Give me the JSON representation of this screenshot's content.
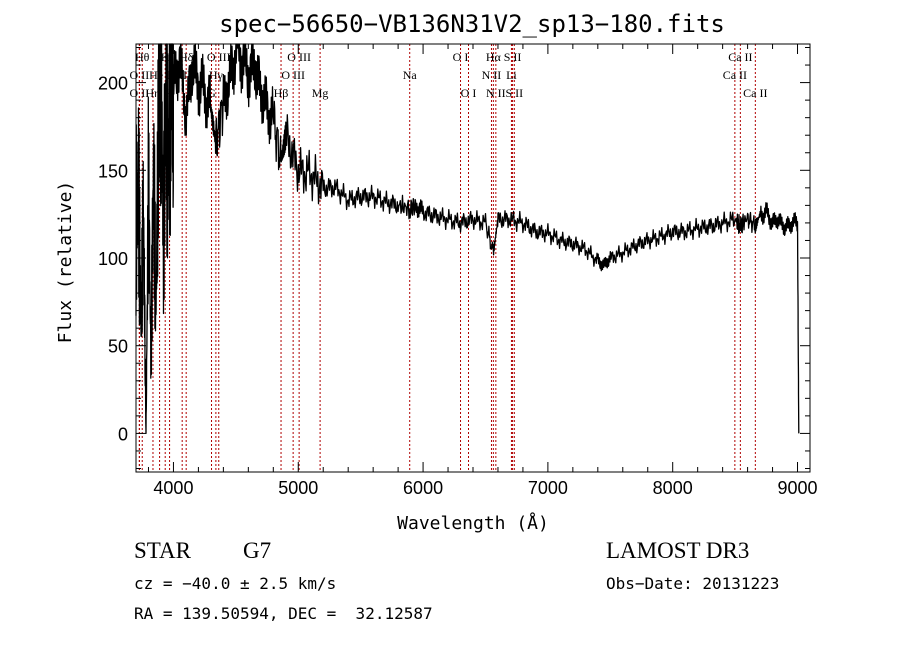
{
  "chart_data": {
    "type": "line",
    "title": "spec−56650−VB136N31V2_sp13−180.fits",
    "xlabel": "Wavelength (Å)",
    "ylabel": "Flux (relative)",
    "xlim": [
      3700,
      9100
    ],
    "ylim": [
      -22,
      222
    ],
    "x_ticks": [
      4000,
      5000,
      6000,
      7000,
      8000,
      9000
    ],
    "y_ticks": [
      0,
      50,
      100,
      150,
      200
    ],
    "series": [
      {
        "name": "flux",
        "x": [
          3700,
          3720,
          3740,
          3760,
          3780,
          3800,
          3820,
          3840,
          3860,
          3880,
          3900,
          3920,
          3940,
          3960,
          3980,
          4000,
          4050,
          4100,
          4150,
          4200,
          4250,
          4300,
          4340,
          4400,
          4450,
          4500,
          4550,
          4600,
          4650,
          4700,
          4750,
          4800,
          4862,
          4900,
          5000,
          5100,
          5200,
          5300,
          5400,
          5500,
          5600,
          5700,
          5800,
          5893,
          5950,
          6000,
          6100,
          6200,
          6300,
          6400,
          6500,
          6563,
          6600,
          6700,
          6800,
          6900,
          7000,
          7100,
          7200,
          7300,
          7400,
          7450,
          7500,
          7600,
          7700,
          7800,
          7900,
          8000,
          8100,
          8200,
          8300,
          8400,
          8500,
          8542,
          8600,
          8662,
          8700,
          8750,
          8800,
          8850,
          8900,
          8950,
          9000,
          9010
        ],
        "y": [
          120,
          140,
          60,
          130,
          0,
          145,
          40,
          150,
          70,
          175,
          205,
          110,
          200,
          150,
          210,
          195,
          215,
          180,
          210,
          200,
          195,
          185,
          165,
          190,
          200,
          220,
          215,
          205,
          210,
          195,
          185,
          180,
          155,
          170,
          150,
          148,
          140,
          140,
          133,
          135,
          135,
          132,
          130,
          128,
          130,
          126,
          124,
          122,
          120,
          122,
          120,
          103,
          122,
          122,
          120,
          115,
          114,
          110,
          108,
          105,
          98,
          96,
          100,
          103,
          107,
          110,
          112,
          115,
          115,
          117,
          118,
          120,
          122,
          118,
          123,
          118,
          125,
          126,
          120,
          122,
          117,
          120,
          120,
          0
        ]
      }
    ],
    "line_colors": {
      "spectrum": "#000000",
      "lines": "#b00000"
    },
    "line_markers": [
      {
        "label": "O II",
        "x": 3727,
        "row": 2
      },
      {
        "label": "Hθ",
        "x": 3750,
        "row": 0
      },
      {
        "label": "O II",
        "x": 3727,
        "row": 1
      },
      {
        "label": "Hη",
        "x": 3836,
        "row": 2
      },
      {
        "label": "He I",
        "x": 3889,
        "row": 1
      },
      {
        "label": "K",
        "x": 3934,
        "row": 0
      },
      {
        "label": "H",
        "x": 3969,
        "row": 2
      },
      {
        "label": "S II",
        "x": 4070,
        "row": 1
      },
      {
        "label": "Hδ",
        "x": 4102,
        "row": 0
      },
      {
        "label": "G",
        "x": 4305,
        "row": 2
      },
      {
        "label": "Hγ",
        "x": 4340,
        "row": 1
      },
      {
        "label": "O III",
        "x": 4363,
        "row": 0
      },
      {
        "label": "Hβ",
        "x": 4862,
        "row": 2
      },
      {
        "label": "O III",
        "x": 4959,
        "row": 1
      },
      {
        "label": "O III",
        "x": 5007,
        "row": 0
      },
      {
        "label": "Mg",
        "x": 5175,
        "row": 2
      },
      {
        "label": "Na",
        "x": 5893,
        "row": 1
      },
      {
        "label": "O I",
        "x": 6300,
        "row": 0
      },
      {
        "label": "O I",
        "x": 6364,
        "row": 2
      },
      {
        "label": "N II",
        "x": 6548,
        "row": 1
      },
      {
        "label": "Hα",
        "x": 6563,
        "row": 0
      },
      {
        "label": "N II",
        "x": 6583,
        "row": 2
      },
      {
        "label": "Li",
        "x": 6708,
        "row": 1
      },
      {
        "label": "S II",
        "x": 6717,
        "row": 0
      },
      {
        "label": "S II",
        "x": 6731,
        "row": 2
      },
      {
        "label": "Ca II",
        "x": 8498,
        "row": 1
      },
      {
        "label": "Ca II",
        "x": 8542,
        "row": 0
      },
      {
        "label": "Ca II",
        "x": 8662,
        "row": 2
      }
    ]
  },
  "info": {
    "object_class": "STAR",
    "subclass": "G7",
    "survey": "LAMOST DR3",
    "redshift": "cz = −40.0 ± 2.5 km/s",
    "obs_date": "Obs−Date: 20131223",
    "coords": "RA = 139.50594, DEC =  32.12587"
  }
}
